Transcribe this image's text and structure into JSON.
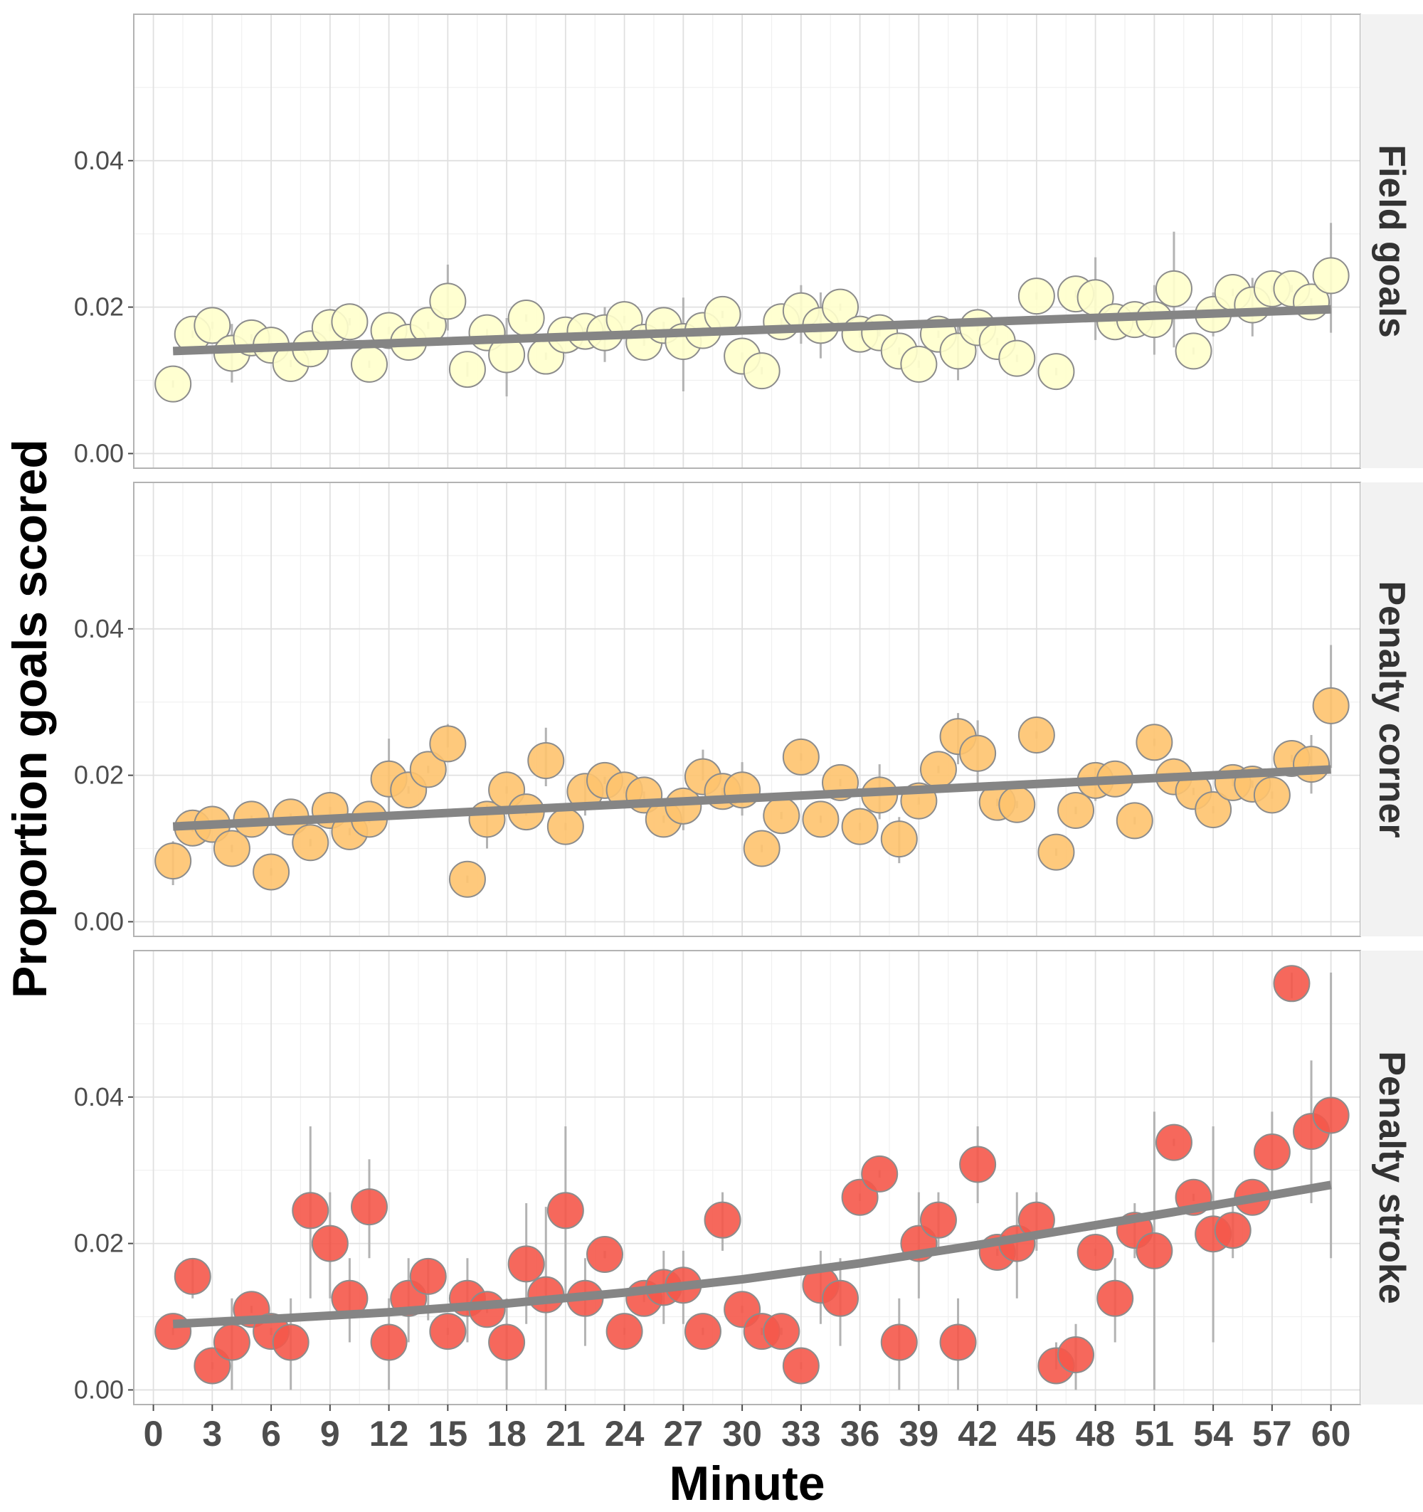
{
  "chart_data": {
    "type": "scatter",
    "xlabel": "Minute",
    "ylabel": "Proportion goals scored",
    "x_ticks": [
      0,
      3,
      6,
      9,
      12,
      15,
      18,
      21,
      24,
      27,
      30,
      33,
      36,
      39,
      42,
      45,
      48,
      51,
      54,
      57,
      60
    ],
    "xlim": [
      -1,
      61.5
    ],
    "y_ticks": [
      0,
      0.02,
      0.04
    ],
    "y_tick_labels": [
      "0.00",
      "0.02",
      "0.04"
    ],
    "ylim": [
      -0.002,
      0.06
    ],
    "grid": true,
    "trend_color": "#858585",
    "point_stroke": "#8c8c8c",
    "error_bar_color": "#b3b3b3",
    "panels": [
      {
        "name": "Field goals",
        "color": "#ffffcc",
        "trend": [
          [
            1,
            0.014
          ],
          [
            60,
            0.0197
          ]
        ],
        "points": [
          [
            1,
            0.0095,
            0.009,
            0.01
          ],
          [
            2,
            0.0163,
            0.0158,
            0.0168
          ],
          [
            3,
            0.0175,
            0.017,
            0.018
          ],
          [
            4,
            0.0137,
            0.0097,
            0.0177
          ],
          [
            5,
            0.0158,
            0.0153,
            0.0163
          ],
          [
            6,
            0.0148,
            0.0143,
            0.0153
          ],
          [
            7,
            0.0123,
            0.0118,
            0.0128
          ],
          [
            8,
            0.0143,
            0.0138,
            0.0148
          ],
          [
            9,
            0.0172,
            0.0167,
            0.0177
          ],
          [
            10,
            0.018,
            0.0175,
            0.0185
          ],
          [
            11,
            0.0122,
            0.0117,
            0.0127
          ],
          [
            12,
            0.0168,
            0.0163,
            0.0173
          ],
          [
            13,
            0.0152,
            0.0147,
            0.0157
          ],
          [
            14,
            0.0175,
            0.017,
            0.018
          ],
          [
            15,
            0.0208,
            0.0168,
            0.0258
          ],
          [
            16,
            0.0115,
            0.0105,
            0.0125
          ],
          [
            17,
            0.0165,
            0.016,
            0.017
          ],
          [
            18,
            0.0135,
            0.0078,
            0.0185
          ],
          [
            19,
            0.0185,
            0.018,
            0.019
          ],
          [
            20,
            0.0133,
            0.0128,
            0.0138
          ],
          [
            21,
            0.0162,
            0.0157,
            0.0167
          ],
          [
            22,
            0.0167,
            0.0162,
            0.0172
          ],
          [
            23,
            0.0165,
            0.0125,
            0.02
          ],
          [
            24,
            0.0183,
            0.0178,
            0.0188
          ],
          [
            25,
            0.0152,
            0.0147,
            0.0157
          ],
          [
            26,
            0.0175,
            0.017,
            0.018
          ],
          [
            27,
            0.0153,
            0.0085,
            0.0213
          ],
          [
            28,
            0.0168,
            0.0163,
            0.0173
          ],
          [
            29,
            0.019,
            0.0185,
            0.0195
          ],
          [
            30,
            0.0133,
            0.0128,
            0.0138
          ],
          [
            31,
            0.0113,
            0.0108,
            0.0118
          ],
          [
            32,
            0.018,
            0.0175,
            0.0185
          ],
          [
            33,
            0.0195,
            0.015,
            0.023
          ],
          [
            34,
            0.0175,
            0.013,
            0.022
          ],
          [
            35,
            0.02,
            0.0195,
            0.0205
          ],
          [
            36,
            0.0163,
            0.0158,
            0.0168
          ],
          [
            37,
            0.0165,
            0.016,
            0.017
          ],
          [
            38,
            0.014,
            0.0135,
            0.0145
          ],
          [
            39,
            0.0122,
            0.0117,
            0.0127
          ],
          [
            40,
            0.0163,
            0.0158,
            0.0168
          ],
          [
            41,
            0.014,
            0.01,
            0.018
          ],
          [
            42,
            0.0172,
            0.0167,
            0.0177
          ],
          [
            43,
            0.0153,
            0.0148,
            0.0158
          ],
          [
            44,
            0.013,
            0.0125,
            0.0135
          ],
          [
            45,
            0.0215,
            0.021,
            0.022
          ],
          [
            46,
            0.0112,
            0.0107,
            0.0117
          ],
          [
            47,
            0.0218,
            0.0213,
            0.0223
          ],
          [
            48,
            0.0213,
            0.0155,
            0.0268
          ],
          [
            49,
            0.018,
            0.0175,
            0.0185
          ],
          [
            50,
            0.0183,
            0.0178,
            0.0188
          ],
          [
            51,
            0.0183,
            0.0135,
            0.023
          ],
          [
            52,
            0.0225,
            0.0145,
            0.0303
          ],
          [
            53,
            0.014,
            0.0135,
            0.0145
          ],
          [
            54,
            0.019,
            0.016,
            0.022
          ],
          [
            55,
            0.022,
            0.0215,
            0.0225
          ],
          [
            56,
            0.0203,
            0.016,
            0.024
          ],
          [
            57,
            0.0225,
            0.022,
            0.023
          ],
          [
            58,
            0.0225,
            0.022,
            0.023
          ],
          [
            59,
            0.0207,
            0.0202,
            0.0212
          ],
          [
            60,
            0.0243,
            0.0165,
            0.0315
          ]
        ]
      },
      {
        "name": "Penalty corner",
        "color": "#fec36e",
        "trend": [
          [
            1,
            0.013
          ],
          [
            60,
            0.0208
          ]
        ],
        "points": [
          [
            1,
            0.0083,
            0.005,
            0.011
          ],
          [
            2,
            0.0128,
            0.0123,
            0.0133
          ],
          [
            3,
            0.0133,
            0.0128,
            0.0138
          ],
          [
            4,
            0.01,
            0.0095,
            0.0105
          ],
          [
            5,
            0.014,
            0.0135,
            0.0145
          ],
          [
            6,
            0.0068,
            0.0063,
            0.0073
          ],
          [
            7,
            0.0143,
            0.0138,
            0.0148
          ],
          [
            8,
            0.0108,
            0.0103,
            0.0113
          ],
          [
            9,
            0.0152,
            0.0147,
            0.0157
          ],
          [
            10,
            0.0123,
            0.0118,
            0.0128
          ],
          [
            11,
            0.014,
            0.0135,
            0.0145
          ],
          [
            12,
            0.0195,
            0.015,
            0.025
          ],
          [
            13,
            0.018,
            0.0175,
            0.0185
          ],
          [
            14,
            0.0208,
            0.0203,
            0.0213
          ],
          [
            15,
            0.0243,
            0.0238,
            0.027
          ],
          [
            16,
            0.0058,
            0.0053,
            0.0063
          ],
          [
            17,
            0.014,
            0.01,
            0.016
          ],
          [
            18,
            0.018,
            0.0175,
            0.0185
          ],
          [
            19,
            0.015,
            0.0145,
            0.0155
          ],
          [
            20,
            0.022,
            0.0185,
            0.0265
          ],
          [
            21,
            0.013,
            0.0125,
            0.0135
          ],
          [
            22,
            0.0178,
            0.0145,
            0.02
          ],
          [
            23,
            0.0193,
            0.0188,
            0.0198
          ],
          [
            24,
            0.018,
            0.0175,
            0.0185
          ],
          [
            25,
            0.0173,
            0.0168,
            0.0178
          ],
          [
            26,
            0.014,
            0.0135,
            0.0145
          ],
          [
            27,
            0.0158,
            0.0125,
            0.018
          ],
          [
            28,
            0.0198,
            0.0193,
            0.0235
          ],
          [
            29,
            0.0178,
            0.0173,
            0.0183
          ],
          [
            30,
            0.018,
            0.0145,
            0.0218
          ],
          [
            31,
            0.01,
            0.0095,
            0.0105
          ],
          [
            32,
            0.0145,
            0.014,
            0.015
          ],
          [
            33,
            0.0225,
            0.022,
            0.023
          ],
          [
            34,
            0.014,
            0.0135,
            0.0145
          ],
          [
            35,
            0.019,
            0.0185,
            0.0195
          ],
          [
            36,
            0.013,
            0.0125,
            0.0135
          ],
          [
            37,
            0.0173,
            0.014,
            0.0215
          ],
          [
            38,
            0.0113,
            0.008,
            0.0143
          ],
          [
            39,
            0.0165,
            0.016,
            0.017
          ],
          [
            40,
            0.0208,
            0.0203,
            0.0213
          ],
          [
            41,
            0.0253,
            0.0215,
            0.0285
          ],
          [
            42,
            0.023,
            0.019,
            0.0275
          ],
          [
            43,
            0.0163,
            0.0158,
            0.0168
          ],
          [
            44,
            0.016,
            0.0155,
            0.0165
          ],
          [
            45,
            0.0255,
            0.025,
            0.026
          ],
          [
            46,
            0.0095,
            0.009,
            0.01
          ],
          [
            47,
            0.0152,
            0.0147,
            0.0157
          ],
          [
            48,
            0.0193,
            0.0165,
            0.021
          ],
          [
            49,
            0.0195,
            0.019,
            0.02
          ],
          [
            50,
            0.0138,
            0.0133,
            0.0143
          ],
          [
            51,
            0.0245,
            0.024,
            0.025
          ],
          [
            52,
            0.0198,
            0.0193,
            0.0203
          ],
          [
            53,
            0.0178,
            0.0173,
            0.0183
          ],
          [
            54,
            0.0153,
            0.0148,
            0.0158
          ],
          [
            55,
            0.019,
            0.0185,
            0.0195
          ],
          [
            56,
            0.0188,
            0.0183,
            0.0193
          ],
          [
            57,
            0.0173,
            0.0168,
            0.0178
          ],
          [
            58,
            0.0223,
            0.0218,
            0.0228
          ],
          [
            59,
            0.0215,
            0.0175,
            0.0255
          ],
          [
            60,
            0.0295,
            0.021,
            0.0378
          ]
        ]
      },
      {
        "name": "Penalty stroke",
        "color": "#f5584a",
        "trend": [
          [
            1,
            0.009
          ],
          [
            6,
            0.0097
          ],
          [
            12,
            0.0106
          ],
          [
            18,
            0.0118
          ],
          [
            24,
            0.0133
          ],
          [
            30,
            0.0151
          ],
          [
            36,
            0.0173
          ],
          [
            42,
            0.0198
          ],
          [
            48,
            0.0225
          ],
          [
            54,
            0.0252
          ],
          [
            60,
            0.028
          ]
        ],
        "points": [
          [
            1,
            0.008,
            0.0075,
            0.0085
          ],
          [
            2,
            0.0155,
            0.0125,
            0.018
          ],
          [
            3,
            0.0033,
            0.0028,
            0.0038
          ],
          [
            4,
            0.0065,
            0.0,
            0.0125
          ],
          [
            5,
            0.011,
            0.0105,
            0.0115
          ],
          [
            6,
            0.008,
            0.0075,
            0.0085
          ],
          [
            7,
            0.0065,
            0.0,
            0.0125
          ],
          [
            8,
            0.0245,
            0.0125,
            0.036
          ],
          [
            9,
            0.02,
            0.0125,
            0.027
          ],
          [
            10,
            0.0125,
            0.0065,
            0.018
          ],
          [
            11,
            0.025,
            0.018,
            0.0315
          ],
          [
            12,
            0.0065,
            0.0,
            0.0125
          ],
          [
            13,
            0.0125,
            0.0065,
            0.018
          ],
          [
            14,
            0.0155,
            0.0095,
            0.018
          ],
          [
            15,
            0.008,
            0.0075,
            0.0085
          ],
          [
            16,
            0.0125,
            0.0065,
            0.018
          ],
          [
            17,
            0.011,
            0.0105,
            0.0115
          ],
          [
            18,
            0.0065,
            0.0,
            0.0125
          ],
          [
            19,
            0.0172,
            0.009,
            0.0255
          ],
          [
            20,
            0.013,
            0.0,
            0.025
          ],
          [
            21,
            0.0245,
            0.0125,
            0.036
          ],
          [
            22,
            0.0125,
            0.006,
            0.018
          ],
          [
            23,
            0.0185,
            0.018,
            0.019
          ],
          [
            24,
            0.008,
            0.0075,
            0.0085
          ],
          [
            25,
            0.0125,
            0.012,
            0.013
          ],
          [
            26,
            0.014,
            0.009,
            0.019
          ],
          [
            27,
            0.0143,
            0.009,
            0.019
          ],
          [
            28,
            0.008,
            0.0075,
            0.0085
          ],
          [
            29,
            0.0232,
            0.019,
            0.027
          ],
          [
            30,
            0.011,
            0.0105,
            0.0115
          ],
          [
            31,
            0.008,
            0.0075,
            0.0085
          ],
          [
            32,
            0.008,
            0.0075,
            0.0085
          ],
          [
            33,
            0.0033,
            0.0028,
            0.0038
          ],
          [
            34,
            0.0143,
            0.009,
            0.019
          ],
          [
            35,
            0.0125,
            0.006,
            0.018
          ],
          [
            36,
            0.0263,
            0.0258,
            0.0268
          ],
          [
            37,
            0.0295,
            0.029,
            0.03
          ],
          [
            38,
            0.0065,
            0.0,
            0.0125
          ],
          [
            39,
            0.02,
            0.0125,
            0.027
          ],
          [
            40,
            0.0232,
            0.019,
            0.027
          ],
          [
            41,
            0.0065,
            0.0,
            0.0125
          ],
          [
            42,
            0.0308,
            0.0255,
            0.036
          ],
          [
            43,
            0.0188,
            0.0183,
            0.0193
          ],
          [
            44,
            0.02,
            0.0125,
            0.027
          ],
          [
            45,
            0.0232,
            0.019,
            0.027
          ],
          [
            46,
            0.0033,
            0.0028,
            0.0065
          ],
          [
            47,
            0.0048,
            0.0,
            0.009
          ],
          [
            48,
            0.0188,
            0.0183,
            0.0193
          ],
          [
            49,
            0.0125,
            0.0065,
            0.018
          ],
          [
            50,
            0.0218,
            0.018,
            0.0255
          ],
          [
            51,
            0.019,
            0.0,
            0.038
          ],
          [
            52,
            0.0338,
            0.0333,
            0.0343
          ],
          [
            53,
            0.0263,
            0.0258,
            0.0268
          ],
          [
            54,
            0.0213,
            0.0065,
            0.036
          ],
          [
            55,
            0.0218,
            0.018,
            0.0255
          ],
          [
            56,
            0.0263,
            0.0258,
            0.0268
          ],
          [
            57,
            0.0325,
            0.027,
            0.038
          ],
          [
            58,
            0.0555,
            0.0535,
            0.057
          ],
          [
            59,
            0.0353,
            0.0255,
            0.045
          ],
          [
            60,
            0.0375,
            0.018,
            0.057
          ]
        ]
      }
    ]
  }
}
